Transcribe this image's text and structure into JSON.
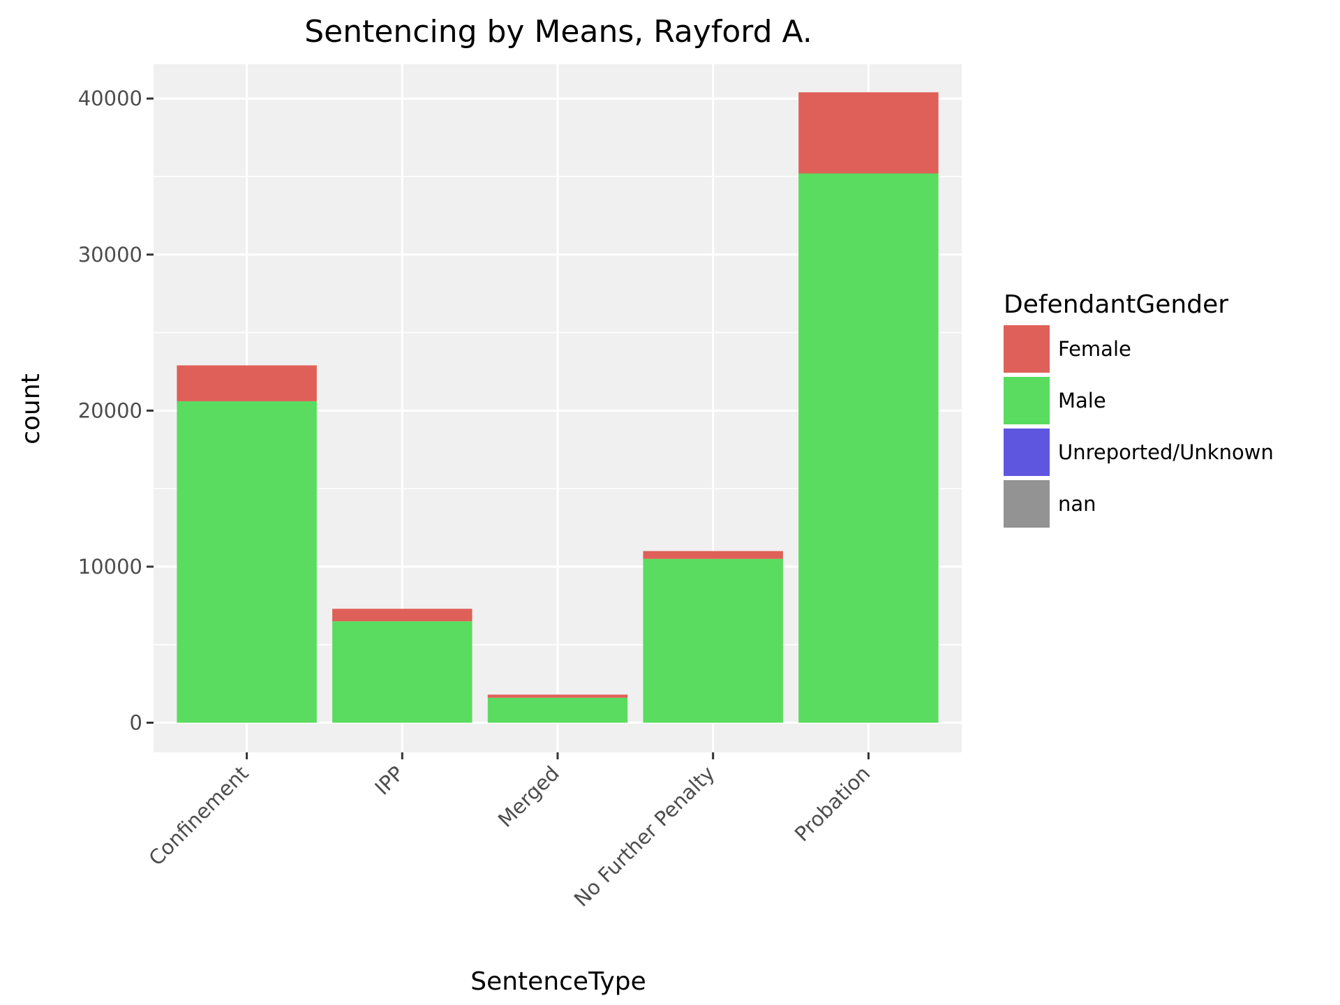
{
  "chart_data": {
    "type": "bar",
    "stacked": true,
    "title": "Sentencing by Means, Rayford A.",
    "xlabel": "SentenceType",
    "ylabel": "count",
    "categories": [
      "Confinement",
      "IPP",
      "Merged",
      "No Further Penalty",
      "Probation"
    ],
    "series": [
      {
        "name": "Male",
        "color": "#59dc5f",
        "values": [
          20600,
          6500,
          1600,
          10500,
          35200
        ]
      },
      {
        "name": "Female",
        "color": "#de6058",
        "values": [
          2300,
          800,
          200,
          500,
          5200
        ]
      },
      {
        "name": "Unreported/Unknown",
        "color": "#5e56de",
        "values": [
          0,
          0,
          0,
          0,
          0
        ]
      },
      {
        "name": "nan",
        "color": "#939393",
        "values": [
          0,
          0,
          0,
          0,
          0
        ]
      }
    ],
    "ylim": [
      -1900,
      42200
    ],
    "yticks": [
      0,
      10000,
      20000,
      30000,
      40000
    ],
    "grid": true,
    "legend": {
      "title": "DefendantGender",
      "placement": "right",
      "entries": [
        {
          "label": "Female",
          "color": "#de6058"
        },
        {
          "label": "Male",
          "color": "#59dc5f"
        },
        {
          "label": "Unreported/Unknown",
          "color": "#5e56de"
        },
        {
          "label": "nan",
          "color": "#939393"
        }
      ]
    }
  }
}
